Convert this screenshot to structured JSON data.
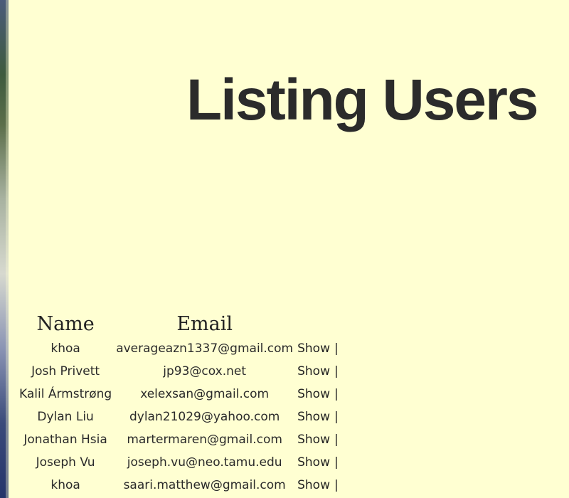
{
  "page": {
    "title": "Listing Users"
  },
  "table": {
    "headers": {
      "name": "Name",
      "email": "Email",
      "actions": ""
    },
    "rows": [
      {
        "name": "khoa",
        "email": "averageazn1337@gmail.com",
        "action": "Show",
        "separator": "|"
      },
      {
        "name": "Josh Privett",
        "email": "jp93@cox.net",
        "action": "Show",
        "separator": "|"
      },
      {
        "name": "Kalil Ármstrøng",
        "email": "xelexsan@gmail.com",
        "action": "Show",
        "separator": "|"
      },
      {
        "name": "Dylan Liu",
        "email": "dylan21029@yahoo.com",
        "action": "Show",
        "separator": "|"
      },
      {
        "name": "Jonathan Hsia",
        "email": "martermaren@gmail.com",
        "action": "Show",
        "separator": "|"
      },
      {
        "name": "Joseph Vu",
        "email": "joseph.vu@neo.tamu.edu",
        "action": "Show",
        "separator": "|"
      },
      {
        "name": "khoa",
        "email": "saari.matthew@gmail.com",
        "action": "Show",
        "separator": "|"
      }
    ]
  },
  "colors": {
    "background": "#ffffd2",
    "text": "#222222"
  }
}
